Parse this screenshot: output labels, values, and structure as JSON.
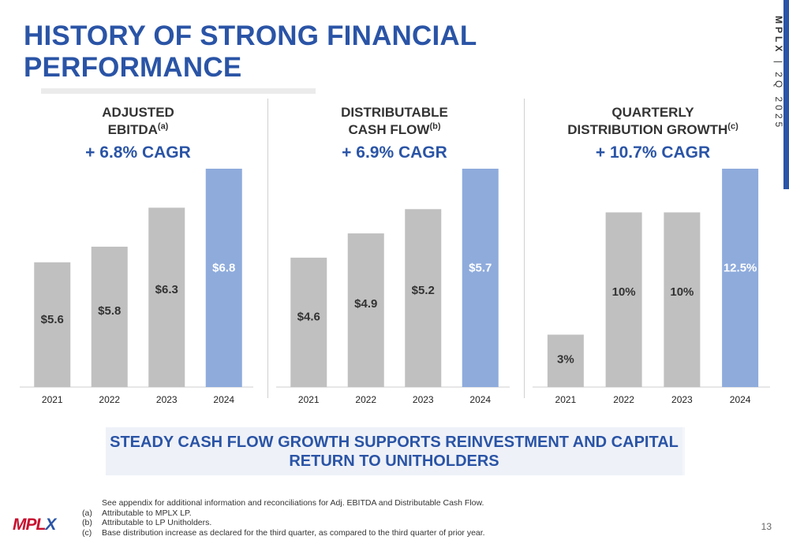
{
  "title": "HISTORY OF STRONG FINANCIAL PERFORMANCE",
  "side_label": {
    "company": "MPLX",
    "period": "| 2Q 2025"
  },
  "colors": {
    "accent": "#2a54a6",
    "bar_gray": "#c0c0c0",
    "bar_highlight": "#8eabdc",
    "logo_red": "#c8102e"
  },
  "chart_data": [
    {
      "type": "bar",
      "title": "ADJUSTED EBITDA",
      "title_lines": [
        "ADJUSTED",
        "EBITDA"
      ],
      "footnote_ref": "(a)",
      "subtitle": "+ 6.8% CAGR",
      "categories": [
        "2021",
        "2022",
        "2023",
        "2024"
      ],
      "values": [
        5.6,
        5.8,
        6.3,
        6.8
      ],
      "labels": [
        "$5.6",
        "$5.8",
        "$6.3",
        "$6.8"
      ],
      "highlight_index": 3,
      "ylim": [
        4.0,
        6.8
      ]
    },
    {
      "type": "bar",
      "title": "DISTRIBUTABLE CASH FLOW",
      "title_lines": [
        "DISTRIBUTABLE",
        "CASH FLOW"
      ],
      "footnote_ref": "(b)",
      "subtitle": "+ 6.9% CAGR",
      "categories": [
        "2021",
        "2022",
        "2023",
        "2024"
      ],
      "values": [
        4.6,
        4.9,
        5.2,
        5.7
      ],
      "labels": [
        "$4.6",
        "$4.9",
        "$5.2",
        "$5.7"
      ],
      "highlight_index": 3,
      "ylim": [
        3.0,
        5.7
      ]
    },
    {
      "type": "bar",
      "title": "QUARTERLY DISTRIBUTION GROWTH",
      "title_lines": [
        "QUARTERLY",
        "DISTRIBUTION GROWTH"
      ],
      "footnote_ref": "(c)",
      "subtitle": "+ 10.7% CAGR",
      "categories": [
        "2021",
        "2022",
        "2023",
        "2024"
      ],
      "values": [
        3,
        10,
        10,
        12.5
      ],
      "labels": [
        "3%",
        "10%",
        "10%",
        "12.5%"
      ],
      "highlight_index": 3,
      "ylim": [
        0,
        12.5
      ]
    }
  ],
  "banner": "STEADY CASH FLOW GROWTH SUPPORTS REINVESTMENT AND CAPITAL RETURN TO UNITHOLDERS",
  "footnotes": {
    "intro": "See appendix for additional information and reconciliations for Adj. EBITDA and Distributable Cash Flow.",
    "items": [
      {
        "key": "(a)",
        "text": "Attributable to MPLX LP."
      },
      {
        "key": "(b)",
        "text": "Attributable to LP Unitholders."
      },
      {
        "key": "(c)",
        "text": "Base distribution increase as declared for the third quarter, as compared to the third quarter of prior year."
      }
    ]
  },
  "logo": {
    "main": "MPL",
    "accent": "X"
  },
  "page_number": "13"
}
